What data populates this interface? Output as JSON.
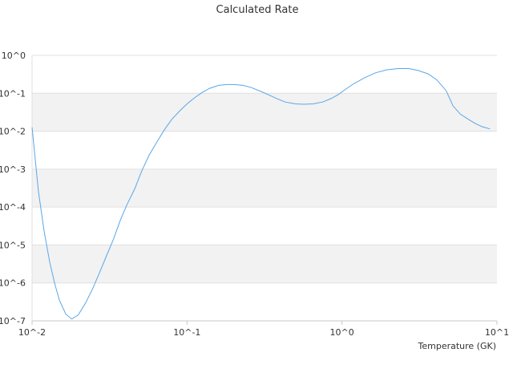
{
  "chart_data": {
    "type": "line",
    "title": "Calculated Rate",
    "xlabel": "Temperature (GK)",
    "ylabel": "",
    "x_scale": "log",
    "y_scale": "log",
    "xlim": [
      0.01,
      10
    ],
    "ylim": [
      1e-07,
      1
    ],
    "x_ticks": [
      "10^-2",
      "10^-1",
      "10^0",
      "10^1"
    ],
    "y_ticks": [
      "10^-7",
      "10^-6",
      "10^-5",
      "10^-4",
      "10^-3",
      "10^-2",
      "10^-1",
      "10^0"
    ],
    "grid": "alternating horizontal bands",
    "colors": {
      "line": "#5aa6e6",
      "band": "#f2f2f2",
      "gridline": "#e0e0e0",
      "axis": "#c8c8c8"
    },
    "series": [
      {
        "x": [
          0.01,
          0.011,
          0.012,
          0.013,
          0.014,
          0.015,
          0.0165,
          0.018,
          0.0198,
          0.022,
          0.0245,
          0.027,
          0.03,
          0.0335,
          0.037,
          0.041,
          0.046,
          0.051,
          0.057,
          0.064,
          0.072,
          0.08,
          0.09,
          0.1,
          0.112,
          0.125,
          0.14,
          0.16,
          0.18,
          0.2,
          0.23,
          0.26,
          0.3,
          0.34,
          0.38,
          0.43,
          0.5,
          0.57,
          0.65,
          0.75,
          0.85,
          0.95,
          1.05,
          1.2,
          1.4,
          1.65,
          1.95,
          2.3,
          2.7,
          3.1,
          3.6,
          4.1,
          4.7,
          5.2,
          5.8,
          6.5,
          7.2,
          8,
          9
        ],
        "y": [
          0.0126,
          0.000251,
          2.14e-05,
          3.55e-06,
          9.55e-07,
          3.55e-07,
          1.51e-07,
          1.12e-07,
          1.41e-07,
          2.82e-07,
          6.76e-07,
          1.7e-06,
          4.79e-06,
          1.41e-05,
          4.37e-05,
          0.000117,
          0.000302,
          0.000891,
          0.00234,
          0.00525,
          0.0115,
          0.0209,
          0.0347,
          0.0525,
          0.0759,
          0.105,
          0.135,
          0.162,
          0.17,
          0.17,
          0.162,
          0.141,
          0.112,
          0.089,
          0.0724,
          0.0589,
          0.0525,
          0.0513,
          0.0525,
          0.0589,
          0.0724,
          0.0933,
          0.126,
          0.182,
          0.257,
          0.347,
          0.417,
          0.447,
          0.447,
          0.398,
          0.324,
          0.224,
          0.117,
          0.0468,
          0.0282,
          0.0209,
          0.0162,
          0.0132,
          0.0115
        ]
      }
    ]
  }
}
